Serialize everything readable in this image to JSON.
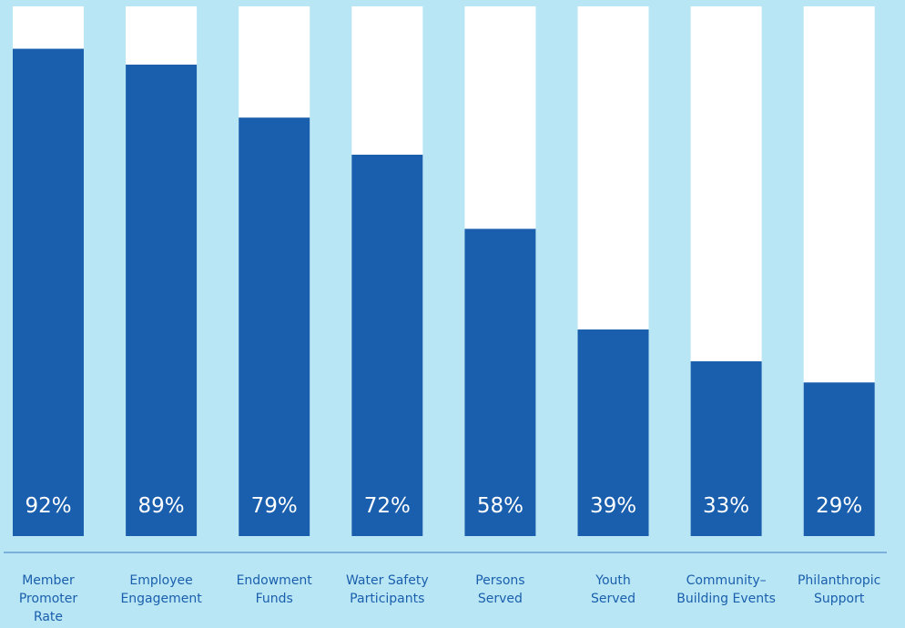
{
  "colors": {
    "background": "#b9e6f5",
    "bar_fill": "#1a5fad",
    "bar_track": "#ffffff",
    "value_text": "#ffffff",
    "label_text": "#1a5fad",
    "axis_line": "#7bb0dc"
  },
  "chart_data": {
    "type": "bar",
    "categories": [
      "Member\nPromoter\nRate",
      "Employee\nEngagement",
      "Endowment\nFunds",
      "Water Safety\nParticipants",
      "Persons\nServed",
      "Youth\nServed",
      "Community–\nBuilding Events",
      "Philanthropic\nSupport"
    ],
    "values": [
      92,
      89,
      79,
      72,
      58,
      39,
      33,
      29
    ],
    "value_labels": [
      "92%",
      "89%",
      "79%",
      "72%",
      "58%",
      "39%",
      "33%",
      "29%"
    ],
    "ylim": [
      0,
      100
    ],
    "grid": false,
    "legend": "none"
  }
}
